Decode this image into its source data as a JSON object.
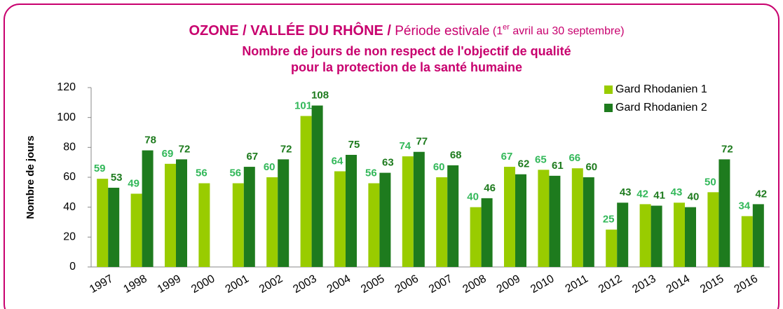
{
  "chart_data": {
    "type": "bar",
    "title_parts": [
      "OZONE / VALLÉE DU RHÔNE /",
      " Période estivale",
      " (1",
      "er",
      " avril au 30 septembre)"
    ],
    "subtitle": [
      "Nombre de jours de non respect de l'objectif de qualité",
      "pour la protection de la santé humaine"
    ],
    "y_label": "Nombre de jours",
    "categories": [
      "1997",
      "1998",
      "1999",
      "2000",
      "2001",
      "2002",
      "2003",
      "2004",
      "2005",
      "2006",
      "2007",
      "2008",
      "2009",
      "2010",
      "2011",
      "2012",
      "2013",
      "2014",
      "2015",
      "2016"
    ],
    "series": [
      {
        "name": "Gard Rhodanien 1",
        "color": "#99cc00",
        "label_color": "#33b85a",
        "values": [
          59,
          49,
          69,
          56,
          56,
          60,
          101,
          64,
          56,
          74,
          60,
          40,
          67,
          65,
          66,
          25,
          42,
          43,
          50,
          34
        ]
      },
      {
        "name": "Gard Rhodanien 2",
        "color": "#1e7b1e",
        "label_color": "#1e7b1e",
        "values": [
          53,
          78,
          72,
          null,
          67,
          72,
          108,
          75,
          63,
          77,
          68,
          46,
          62,
          61,
          60,
          43,
          41,
          40,
          72,
          42
        ]
      }
    ],
    "ylim": [
      0,
      120
    ],
    "yticks": [
      0,
      20,
      40,
      60,
      80,
      100,
      120
    ],
    "grid": false,
    "legend": "top-right"
  }
}
